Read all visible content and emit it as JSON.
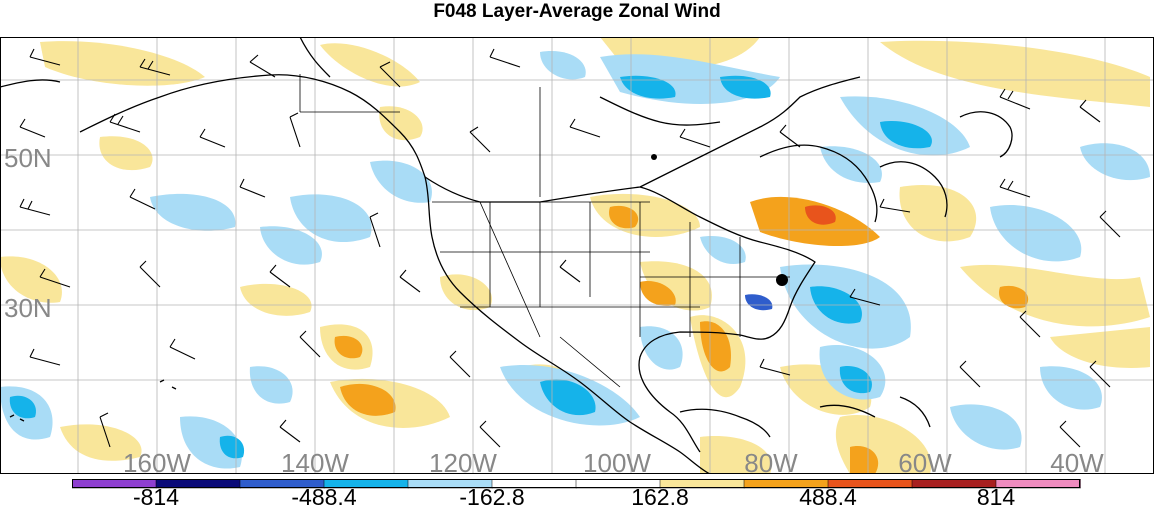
{
  "title": "F048 Layer-Average Zonal Wind",
  "map": {
    "lat_labels": [
      "50N",
      "30N"
    ],
    "lon_labels": [
      "160W",
      "140W",
      "120W",
      "100W",
      "80W",
      "60W",
      "40W"
    ],
    "label_color": "#888888",
    "land_feature": "north-america-coastline",
    "field": "layer-average zonal wind",
    "overlay": "wind barbs"
  },
  "colorbar": {
    "tick_labels": [
      "-814",
      "-488.4",
      "-162.8",
      "162.8",
      "488.4",
      "814"
    ],
    "colors": [
      "#8e3fd0",
      "#0a0a78",
      "#2f5dcc",
      "#15b3ea",
      "#a9dcf6",
      "#ffffff",
      "#ffffff",
      "#f9e69a",
      "#f4a21c",
      "#e8541c",
      "#a82020",
      "#ef8cbf"
    ]
  }
}
